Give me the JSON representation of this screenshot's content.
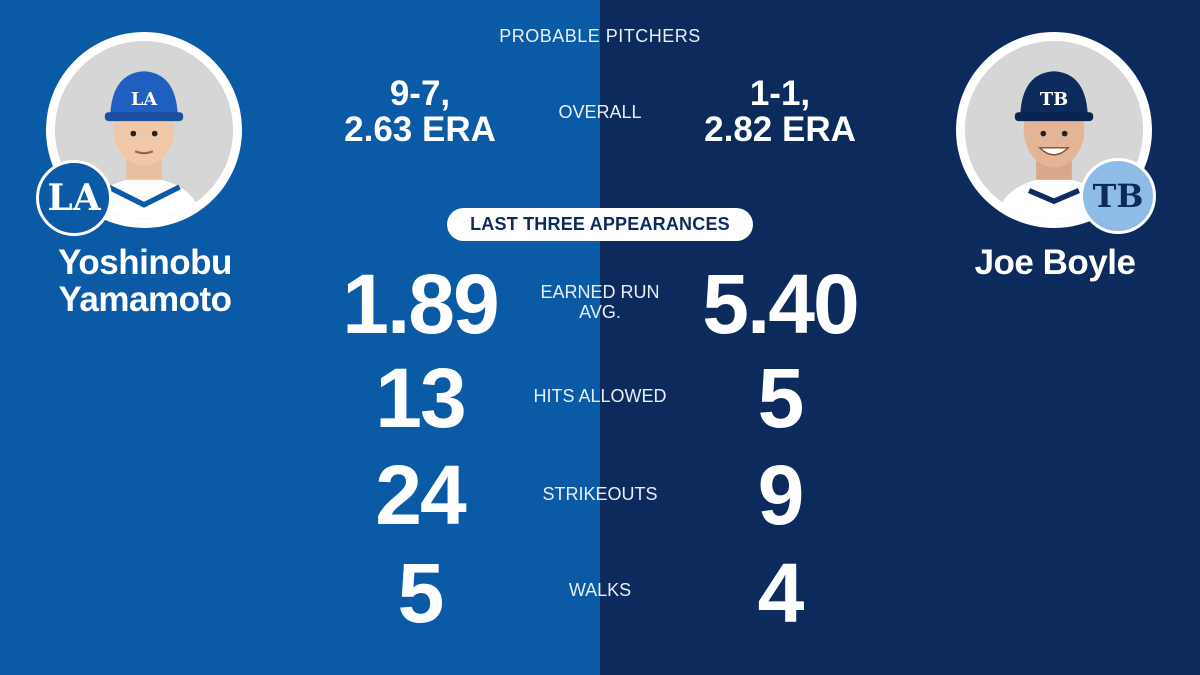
{
  "header": {
    "title": "PROBABLE PITCHERS"
  },
  "colors": {
    "left_bg": "#0a5aa6",
    "right_bg": "#0c2b5c",
    "text": "#ffffff"
  },
  "players": {
    "left": {
      "name_line1": "Yoshinobu",
      "name_line2": "Yamamoto",
      "team_logo": "LA",
      "overall_line1": "9-7,",
      "overall_line2": "2.63 ERA"
    },
    "right": {
      "name_line1": "Joe Boyle",
      "team_logo": "TB",
      "overall_line1": "1-1,",
      "overall_line2": "2.82 ERA"
    }
  },
  "overall_label": "OVERALL",
  "section_label": "LAST THREE APPEARANCES",
  "stats": [
    {
      "label_line1": "EARNED RUN",
      "label_line2": "AVG.",
      "left": "1.89",
      "right": "5.40"
    },
    {
      "label_line1": "HITS ALLOWED",
      "label_line2": "",
      "left": "13",
      "right": "5"
    },
    {
      "label_line1": "STRIKEOUTS",
      "label_line2": "",
      "left": "24",
      "right": "9"
    },
    {
      "label_line1": "WALKS",
      "label_line2": "",
      "left": "5",
      "right": "4"
    }
  ]
}
